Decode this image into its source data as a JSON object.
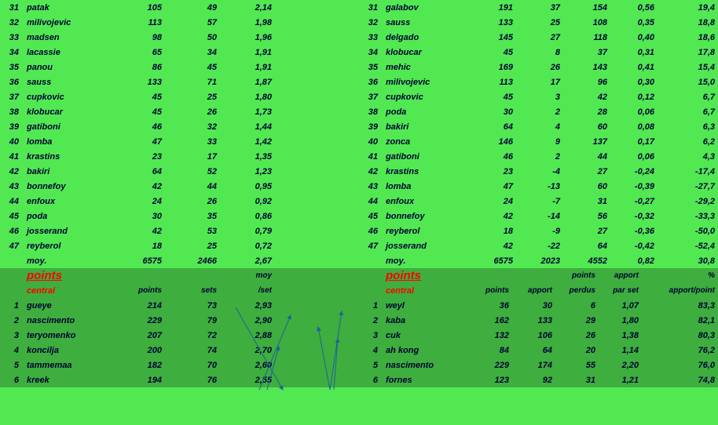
{
  "colors": {
    "bg_top": "#52e852",
    "bg_bot": "#3eae3e",
    "text": "#000033",
    "accent": "#ff0000",
    "arrow": "#2060a0"
  },
  "left_top": {
    "cols": [
      "rank",
      "name",
      "c1",
      "c2",
      "c3"
    ],
    "rows": [
      [
        "31",
        "patak",
        "105",
        "49",
        "2,14"
      ],
      [
        "32",
        "milivojevic",
        "113",
        "57",
        "1,98"
      ],
      [
        "33",
        "madsen",
        "98",
        "50",
        "1,96"
      ],
      [
        "34",
        "lacassie",
        "65",
        "34",
        "1,91"
      ],
      [
        "35",
        "panou",
        "86",
        "45",
        "1,91"
      ],
      [
        "36",
        "sauss",
        "133",
        "71",
        "1,87"
      ],
      [
        "37",
        "cupkovic",
        "45",
        "25",
        "1,80"
      ],
      [
        "38",
        "klobucar",
        "45",
        "26",
        "1,73"
      ],
      [
        "39",
        "gatiboni",
        "46",
        "32",
        "1,44"
      ],
      [
        "40",
        "lomba",
        "47",
        "33",
        "1,42"
      ],
      [
        "41",
        "krastins",
        "23",
        "17",
        "1,35"
      ],
      [
        "42",
        "bakiri",
        "64",
        "52",
        "1,23"
      ],
      [
        "43",
        "bonnefoy",
        "42",
        "44",
        "0,95"
      ],
      [
        "44",
        "enfoux",
        "24",
        "26",
        "0,92"
      ],
      [
        "45",
        "poda",
        "30",
        "35",
        "0,86"
      ],
      [
        "46",
        "josserand",
        "42",
        "53",
        "0,79"
      ],
      [
        "47",
        "reyberol",
        "18",
        "25",
        "0,72"
      ]
    ],
    "moy": [
      "moy.",
      "6575",
      "2466",
      "2,67"
    ]
  },
  "right_top": {
    "cols": [
      "rank",
      "name",
      "c1",
      "c2",
      "c3",
      "c4",
      "c5"
    ],
    "rows": [
      [
        "31",
        "galabov",
        "191",
        "37",
        "154",
        "0,56",
        "19,4"
      ],
      [
        "32",
        "sauss",
        "133",
        "25",
        "108",
        "0,35",
        "18,8"
      ],
      [
        "33",
        "delgado",
        "145",
        "27",
        "118",
        "0,40",
        "18,6"
      ],
      [
        "34",
        "klobucar",
        "45",
        "8",
        "37",
        "0,31",
        "17,8"
      ],
      [
        "35",
        "mehic",
        "169",
        "26",
        "143",
        "0,41",
        "15,4"
      ],
      [
        "36",
        "milivojevic",
        "113",
        "17",
        "96",
        "0,30",
        "15,0"
      ],
      [
        "37",
        "cupkovic",
        "45",
        "3",
        "42",
        "0,12",
        "6,7"
      ],
      [
        "38",
        "poda",
        "30",
        "2",
        "28",
        "0,06",
        "6,7"
      ],
      [
        "39",
        "bakiri",
        "64",
        "4",
        "60",
        "0,08",
        "6,3"
      ],
      [
        "40",
        "zonca",
        "146",
        "9",
        "137",
        "0,17",
        "6,2"
      ],
      [
        "41",
        "gatiboni",
        "46",
        "2",
        "44",
        "0,06",
        "4,3"
      ],
      [
        "42",
        "krastins",
        "23",
        "-4",
        "27",
        "-0,24",
        "-17,4"
      ],
      [
        "43",
        "lomba",
        "47",
        "-13",
        "60",
        "-0,39",
        "-27,7"
      ],
      [
        "44",
        "enfoux",
        "24",
        "-7",
        "31",
        "-0,27",
        "-29,2"
      ],
      [
        "45",
        "bonnefoy",
        "42",
        "-14",
        "56",
        "-0,32",
        "-33,3"
      ],
      [
        "46",
        "reyberol",
        "18",
        "-9",
        "27",
        "-0,36",
        "-50,0"
      ],
      [
        "47",
        "josserand",
        "42",
        "-22",
        "64",
        "-0,42",
        "-52,4"
      ]
    ],
    "moy": [
      "moy.",
      "6575",
      "2023",
      "4552",
      "0,82",
      "30,8"
    ]
  },
  "left_bot": {
    "title": "points",
    "subtitle": "central",
    "headers": [
      "",
      "points",
      "sets",
      "moy /set"
    ],
    "rows": [
      [
        "1",
        "gueye",
        "214",
        "73",
        "2,93"
      ],
      [
        "2",
        "nascimento",
        "229",
        "79",
        "2,90"
      ],
      [
        "3",
        "teryomenko",
        "207",
        "72",
        "2,88"
      ],
      [
        "4",
        "koncilja",
        "200",
        "74",
        "2,70"
      ],
      [
        "5",
        "tammemaa",
        "182",
        "70",
        "2,60"
      ],
      [
        "6",
        "kreek",
        "194",
        "76",
        "2,55"
      ]
    ]
  },
  "right_bot": {
    "title": "points",
    "subtitle": "central",
    "headers": [
      "",
      "points",
      "apport",
      "points perdus",
      "apport par set",
      "% apport/point"
    ],
    "rows": [
      [
        "1",
        "weyl",
        "36",
        "30",
        "6",
        "1,07",
        "83,3"
      ],
      [
        "2",
        "kaba",
        "162",
        "133",
        "29",
        "1,80",
        "82,1"
      ],
      [
        "3",
        "cuk",
        "132",
        "106",
        "26",
        "1,38",
        "80,3"
      ],
      [
        "4",
        "ah kong",
        "84",
        "64",
        "20",
        "1,14",
        "76,2"
      ],
      [
        "5",
        "nascimento",
        "229",
        "174",
        "55",
        "2,20",
        "76,0"
      ],
      [
        "6",
        "fornes",
        "123",
        "92",
        "31",
        "1,21",
        "74,8"
      ]
    ]
  }
}
